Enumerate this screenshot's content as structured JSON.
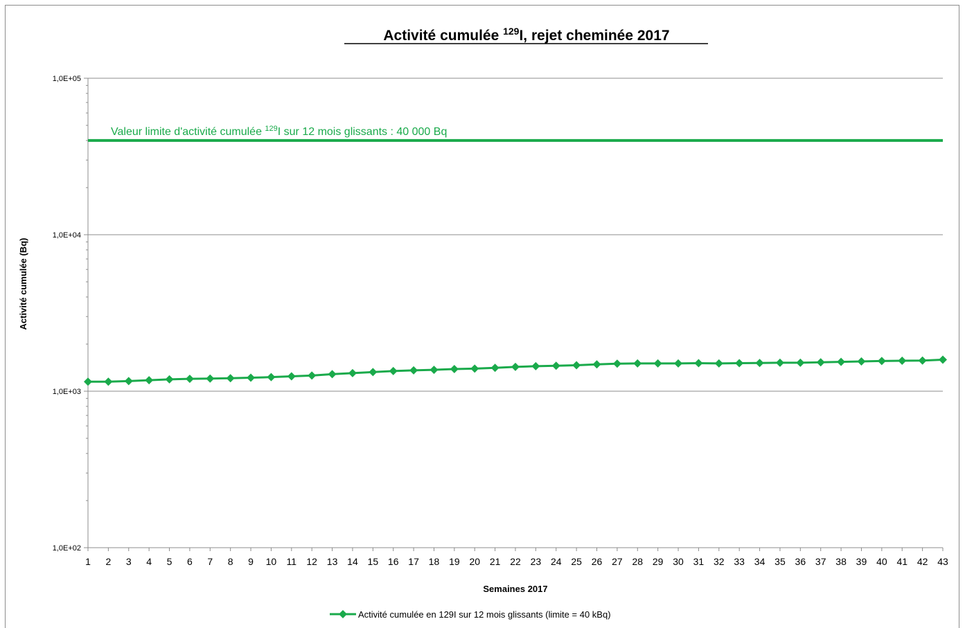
{
  "chart_data": {
    "type": "line",
    "title": {
      "main": "Activité cumulée ",
      "superscript": "129",
      "rest": "I, rejet cheminée 2017"
    },
    "xlabel": "Semaines 2017",
    "ylabel": "Activité cumulée (Bq)",
    "yscale": "log",
    "ylim": [
      100,
      100000
    ],
    "yticks": [
      {
        "value": 100,
        "label": "1,0E+02"
      },
      {
        "value": 1000,
        "label": "1,0E+03"
      },
      {
        "value": 10000,
        "label": "1,0E+04"
      },
      {
        "value": 100000,
        "label": "1,0E+05"
      }
    ],
    "x": [
      1,
      2,
      3,
      4,
      5,
      6,
      7,
      8,
      9,
      10,
      11,
      12,
      13,
      14,
      15,
      16,
      17,
      18,
      19,
      20,
      21,
      22,
      23,
      24,
      25,
      26,
      27,
      28,
      29,
      30,
      31,
      32,
      33,
      34,
      35,
      36,
      37,
      38,
      39,
      40,
      41,
      42,
      43
    ],
    "series": [
      {
        "name": "Activité cumulée en 129I sur 12 mois glissants (limite = 40 kBq)",
        "color": "#1aaa4b",
        "marker": "diamond",
        "values": [
          1150,
          1150,
          1160,
          1175,
          1190,
          1200,
          1205,
          1210,
          1220,
          1230,
          1245,
          1260,
          1285,
          1305,
          1325,
          1345,
          1360,
          1370,
          1385,
          1395,
          1410,
          1430,
          1445,
          1455,
          1465,
          1485,
          1500,
          1505,
          1505,
          1505,
          1510,
          1505,
          1510,
          1515,
          1520,
          1520,
          1530,
          1540,
          1550,
          1560,
          1565,
          1570,
          1590
        ]
      }
    ],
    "limit_line": {
      "value": 40000,
      "color": "#1aaa4b",
      "label_pre": "Valeur limite d'activité cumulée ",
      "label_sup": "129",
      "label_post": "I sur 12 mois  glissants : 40 000 Bq"
    },
    "grid": true,
    "legend_position": "bottom"
  }
}
